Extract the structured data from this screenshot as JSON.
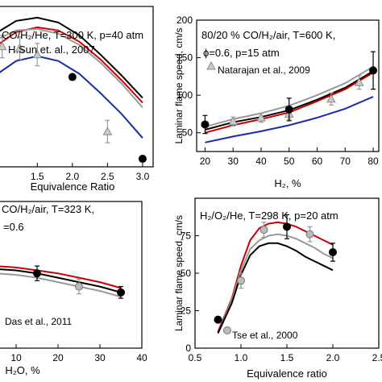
{
  "chart_data": [
    {
      "type": "line",
      "panel": "top-left",
      "annotation_lines": [
        "CO/H₂/He, T=300 K, p=40 atm",
        "H.Sun et. al., 2007"
      ],
      "xlabel": "Equivalence Ratio",
      "ylabel": "",
      "xticks": [
        "1.5",
        "2.0",
        "2.5",
        "3.0"
      ],
      "yticks": [],
      "xlim": [
        0.9,
        3.15
      ],
      "ylim": [
        0,
        100
      ],
      "series": [
        {
          "name": "model-black",
          "color": "#000000",
          "x": [
            0.9,
            1.2,
            1.5,
            1.8,
            2.1,
            2.4,
            2.7,
            3.0
          ],
          "y": [
            83,
            91,
            93,
            90,
            82,
            70,
            57,
            43
          ]
        },
        {
          "name": "model-red",
          "color": "#cc0000",
          "x": [
            0.9,
            1.2,
            1.5,
            1.8,
            2.1,
            2.4,
            2.7,
            3.0
          ],
          "y": [
            75,
            84,
            87,
            85,
            78,
            67,
            54,
            40
          ]
        },
        {
          "name": "model-gray",
          "color": "#999999",
          "x": [
            0.9,
            1.2,
            1.5,
            1.8,
            2.1,
            2.4,
            2.7,
            3.0
          ],
          "y": [
            79,
            85,
            86,
            83,
            76,
            65,
            52,
            37
          ]
        },
        {
          "name": "model-blue",
          "color": "#1a2ab0",
          "x": [
            0.9,
            1.2,
            1.5,
            1.8,
            2.1,
            2.4,
            2.7,
            3.0
          ],
          "y": [
            57,
            66,
            69,
            66,
            58,
            46,
            33,
            18
          ]
        }
      ],
      "markers": [
        {
          "name": "H.Sun et. al., 2007",
          "shape": "triangle",
          "x": [
            1.0,
            1.25,
            1.5,
            2.5
          ],
          "y": [
            75,
            74,
            70,
            22
          ],
          "err": [
            7,
            7,
            7,
            7
          ]
        },
        {
          "name": "exp-black",
          "shape": "circle",
          "x": [
            2.0,
            3.0
          ],
          "y": [
            56,
            5
          ],
          "err": [
            0,
            0
          ]
        }
      ]
    },
    {
      "type": "line",
      "panel": "top-right",
      "annotation_lines": [
        "80/20 % CO/H₂/air, T=600 K,",
        "ϕ=0.6, p=15 atm",
        "Natarajan et al., 2009"
      ],
      "xlabel": "H₂, %",
      "ylabel": "Laminar flame speed, cm/s",
      "xticks": [
        "20",
        "30",
        "40",
        "50",
        "60",
        "70",
        "80"
      ],
      "yticks": [
        "50",
        "100",
        "150",
        "200"
      ],
      "xlim": [
        17,
        82
      ],
      "ylim": [
        25,
        200
      ],
      "series": [
        {
          "name": "model-black",
          "color": "#000000",
          "x": [
            20,
            30,
            40,
            50,
            60,
            70,
            80
          ],
          "y": [
            54,
            64,
            71,
            80,
            94,
            110,
            132
          ]
        },
        {
          "name": "model-red",
          "color": "#cc0000",
          "x": [
            20,
            30,
            40,
            50,
            60,
            70,
            80
          ],
          "y": [
            50,
            60,
            68,
            77,
            92,
            108,
            130
          ]
        },
        {
          "name": "model-gray",
          "color": "#999999",
          "x": [
            20,
            30,
            40,
            50,
            60,
            70,
            80
          ],
          "y": [
            58,
            68,
            76,
            86,
            100,
            116,
            138
          ]
        },
        {
          "name": "model-blue",
          "color": "#1a2ab0",
          "x": [
            20,
            30,
            40,
            50,
            60,
            70,
            80
          ],
          "y": [
            37,
            45,
            52,
            60,
            70,
            82,
            98
          ]
        }
      ],
      "markers": [
        {
          "name": "Natarajan et al., 2009",
          "shape": "triangle",
          "x": [
            30,
            40,
            50,
            65,
            75
          ],
          "y": [
            65,
            70,
            75,
            95,
            117
          ],
          "err": [
            6,
            6,
            7,
            8,
            9
          ]
        },
        {
          "name": "exp-black",
          "shape": "circle",
          "x": [
            20,
            50,
            80
          ],
          "y": [
            61,
            81,
            133
          ],
          "err": [
            12,
            15,
            25
          ]
        }
      ]
    },
    {
      "type": "line",
      "panel": "bottom-left",
      "annotation_lines": [
        "CO/H₂/air, T=323 K,",
        "=0.6",
        "Das et al., 2011"
      ],
      "xlabel": "H₂O, %",
      "ylabel": "",
      "xticks": [
        "10",
        "20",
        "30",
        "40"
      ],
      "yticks": [],
      "xlim": [
        5,
        40
      ],
      "ylim": [
        0,
        100
      ],
      "series": [
        {
          "name": "model-red",
          "color": "#cc0000",
          "x": [
            5,
            10,
            15,
            20,
            25,
            30,
            35
          ],
          "y": [
            56,
            55,
            53,
            51,
            48,
            45,
            41
          ]
        },
        {
          "name": "model-black",
          "color": "#000000",
          "x": [
            5,
            10,
            15,
            20,
            25,
            30,
            35
          ],
          "y": [
            54,
            53,
            51,
            48,
            45,
            42,
            38
          ]
        },
        {
          "name": "model-gray",
          "color": "#999999",
          "x": [
            5,
            10,
            15,
            20,
            25,
            30,
            35
          ],
          "y": [
            51,
            50,
            48,
            45,
            42,
            39,
            35
          ]
        }
      ],
      "markers": [
        {
          "name": "Das et al., 2011",
          "shape": "circle-gray",
          "x": [
            5,
            25
          ],
          "y": [
            55,
            42
          ],
          "err": [
            5,
            5
          ]
        },
        {
          "name": "exp-black",
          "shape": "circle",
          "x": [
            15,
            35
          ],
          "y": [
            51,
            38
          ],
          "err": [
            5,
            4
          ]
        }
      ]
    },
    {
      "type": "line",
      "panel": "bottom-right",
      "annotation_lines": [
        "H₂/O₂/He, T=298 K, p=20 atm",
        "Tse et al., 2000"
      ],
      "xlabel": "Equivalence ratio",
      "ylabel": "Laminar flame speed, cm/s",
      "xticks": [
        "0.5",
        "1.0",
        "1.5",
        "2.0",
        "2.5"
      ],
      "yticks": [
        "0",
        "25",
        "50",
        "75"
      ],
      "xlim": [
        0.5,
        2.5
      ],
      "ylim": [
        0,
        100
      ],
      "series": [
        {
          "name": "model-red",
          "color": "#cc0000",
          "x": [
            0.75,
            0.9,
            1.0,
            1.1,
            1.2,
            1.3,
            1.4,
            1.5,
            1.6,
            1.7,
            1.8,
            1.9,
            2.0
          ],
          "y": [
            11,
            33,
            55,
            72,
            80,
            83,
            84,
            83,
            81,
            78,
            75,
            72,
            69
          ]
        },
        {
          "name": "model-gray",
          "color": "#999999",
          "x": [
            0.75,
            0.9,
            1.0,
            1.1,
            1.2,
            1.3,
            1.4,
            1.5,
            1.6,
            1.7,
            1.8,
            1.9,
            2.0
          ],
          "y": [
            10,
            32,
            52,
            66,
            72,
            75,
            76,
            75,
            73,
            70,
            67,
            63,
            60
          ]
        },
        {
          "name": "model-black",
          "color": "#000000",
          "x": [
            0.75,
            0.9,
            1.0,
            1.1,
            1.2,
            1.3,
            1.4,
            1.5,
            1.6,
            1.7,
            1.8,
            1.9,
            2.0
          ],
          "y": [
            10,
            30,
            49,
            62,
            68,
            70,
            70,
            68,
            65,
            61,
            58,
            55,
            52
          ]
        }
      ],
      "markers": [
        {
          "name": "Tse et al., 2000",
          "shape": "circle-gray",
          "x": [
            1.0,
            1.25,
            1.75
          ],
          "y": [
            45,
            79,
            76
          ],
          "err": [
            5,
            5,
            5
          ]
        },
        {
          "name": "exp-black",
          "shape": "circle",
          "x": [
            0.75,
            1.5,
            2.0
          ],
          "y": [
            19,
            81,
            64
          ],
          "err": [
            0,
            8,
            6
          ]
        }
      ]
    }
  ]
}
